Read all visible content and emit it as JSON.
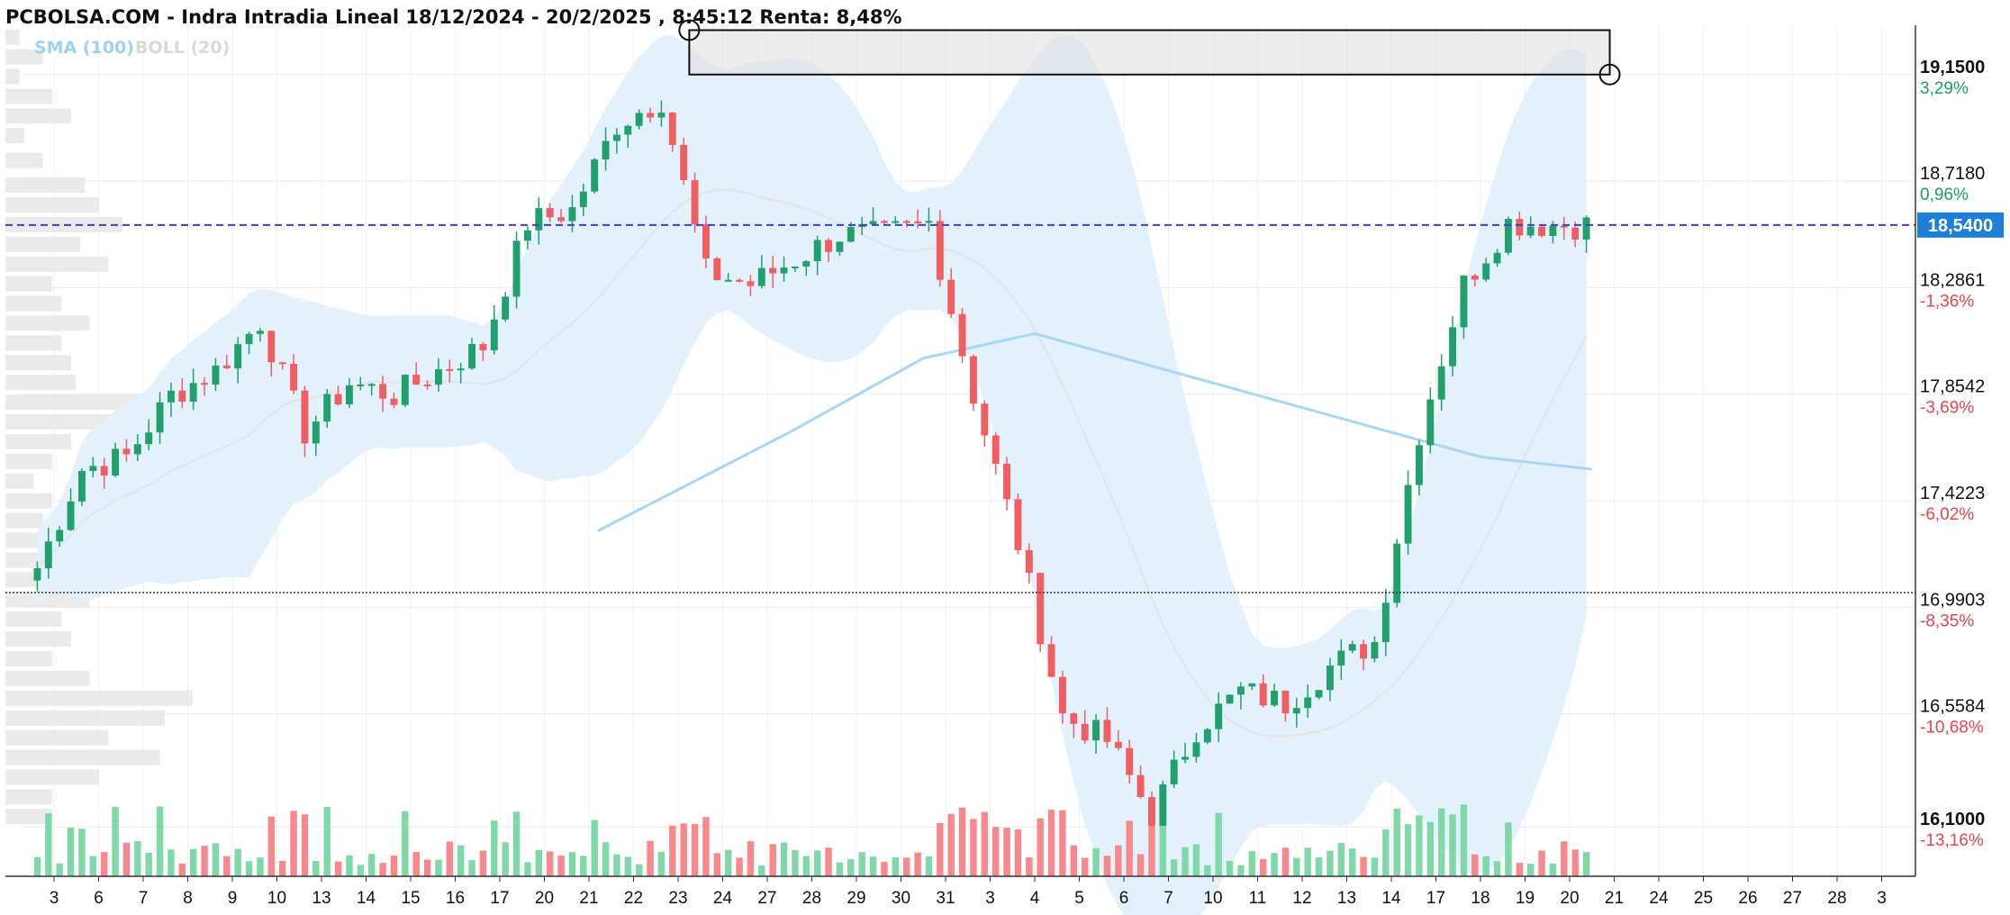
{
  "title": "PCBOLSA.COM - Indra Intradia Lineal 18/12/2024 - 20/2/2025 , 8:45:12 Renta: 8,48%",
  "legend": {
    "sma": "SMA (100)",
    "boll": "BOLL (20)"
  },
  "colors": {
    "up": "#22a06b",
    "down": "#f15e62",
    "vol_up": "#7fd8a8",
    "vol_down": "#f7888b",
    "band_fill": "#e2f1fc",
    "sma": "#a9d6f5",
    "boll_mid": "#e4e4e4",
    "last_price_line": "#3b3bd6",
    "price_tag": "#1e7fd6",
    "profile": "#e6e6e6"
  },
  "price_axis": [
    {
      "label": "19,1500",
      "pct": "3,29%",
      "sign": "pos",
      "bold": true
    },
    {
      "label": "18,7180",
      "pct": "0,96%",
      "sign": "pos",
      "bold": false
    },
    {
      "label": "18,2861",
      "pct": "-1,36%",
      "sign": "neg",
      "bold": false
    },
    {
      "label": "17,8542",
      "pct": "-3,69%",
      "sign": "neg",
      "bold": false
    },
    {
      "label": "17,4223",
      "pct": "-6,02%",
      "sign": "neg",
      "bold": false
    },
    {
      "label": "16,9903",
      "pct": "-8,35%",
      "sign": "neg",
      "bold": false
    },
    {
      "label": "16,5584",
      "pct": "-10,68%",
      "sign": "neg",
      "bold": false
    },
    {
      "label": "16,1000",
      "pct": "-13,16%",
      "sign": "neg",
      "bold": true
    }
  ],
  "last_price": "18,5400",
  "chart_data": {
    "type": "candlestick",
    "title": "PCBOLSA.COM - Indra Intradia Lineal 18/12/2024 - 20/2/2025 , 8:45:12 Renta: 8,48%",
    "y_range": [
      15.9,
      19.35
    ],
    "x_categories": [
      "3",
      "6",
      "7",
      "8",
      "9",
      "10",
      "13",
      "14",
      "15",
      "16",
      "17",
      "20",
      "21",
      "22",
      "23",
      "24",
      "27",
      "28",
      "29",
      "30",
      "31",
      "3",
      "4",
      "5",
      "6",
      "7",
      "10",
      "11",
      "12",
      "13",
      "14",
      "17",
      "18",
      "19",
      "20",
      "21",
      "24",
      "25",
      "26",
      "27",
      "28",
      "3"
    ],
    "trading_days": 35,
    "last_price": 18.54,
    "reference_price": 17.05,
    "rectangle": {
      "x_start": 14.25,
      "x_end": 34.9,
      "y_top": 19.33,
      "y_bottom": 19.15
    },
    "day_anchors": [
      [
        0,
        17.15
      ],
      [
        1,
        17.55
      ],
      [
        2,
        17.6
      ],
      [
        3,
        17.85
      ],
      [
        4,
        17.95
      ],
      [
        5,
        18.15
      ],
      [
        6,
        17.7
      ],
      [
        7,
        17.9
      ],
      [
        8,
        17.85
      ],
      [
        9,
        17.95
      ],
      [
        10,
        18.05
      ],
      [
        11,
        18.55
      ],
      [
        12,
        18.6
      ],
      [
        13,
        18.95
      ],
      [
        14,
        19.05
      ],
      [
        15,
        18.35
      ],
      [
        16,
        18.3
      ],
      [
        17,
        18.4
      ],
      [
        18,
        18.5
      ],
      [
        19,
        18.5
      ],
      [
        20,
        18.55
      ],
      [
        21,
        17.85
      ],
      [
        22,
        17.25
      ],
      [
        23,
        16.55
      ],
      [
        24,
        16.45
      ],
      [
        25,
        16.15
      ],
      [
        26,
        16.5
      ],
      [
        27,
        16.65
      ],
      [
        28,
        16.6
      ],
      [
        29,
        16.75
      ],
      [
        30,
        16.85
      ],
      [
        31,
        17.7
      ],
      [
        32,
        18.3
      ],
      [
        33,
        18.55
      ],
      [
        34,
        18.54
      ]
    ],
    "sma_100": [
      [
        12.2,
        17.3
      ],
      [
        16.5,
        17.7
      ],
      [
        19.5,
        18.0
      ],
      [
        22.0,
        18.1
      ],
      [
        25.0,
        17.95
      ],
      [
        28.0,
        17.8
      ],
      [
        32.0,
        17.6
      ],
      [
        34.5,
        17.55
      ]
    ],
    "volume_profile": [
      [
        19.3,
        0.03
      ],
      [
        19.22,
        0.08
      ],
      [
        19.14,
        0.03
      ],
      [
        19.06,
        0.1
      ],
      [
        18.98,
        0.14
      ],
      [
        18.9,
        0.04
      ],
      [
        18.8,
        0.08
      ],
      [
        18.7,
        0.17
      ],
      [
        18.62,
        0.2
      ],
      [
        18.54,
        0.25
      ],
      [
        18.46,
        0.16
      ],
      [
        18.38,
        0.22
      ],
      [
        18.3,
        0.1
      ],
      [
        18.22,
        0.12
      ],
      [
        18.14,
        0.18
      ],
      [
        18.06,
        0.12
      ],
      [
        17.98,
        0.14
      ],
      [
        17.9,
        0.15
      ],
      [
        17.82,
        0.36
      ],
      [
        17.74,
        0.25
      ],
      [
        17.66,
        0.14
      ],
      [
        17.58,
        0.1
      ],
      [
        17.5,
        0.06
      ],
      [
        17.42,
        0.1
      ],
      [
        17.34,
        0.08
      ],
      [
        17.26,
        0.14
      ],
      [
        17.18,
        0.12
      ],
      [
        17.1,
        0.16
      ],
      [
        17.02,
        0.18
      ],
      [
        16.94,
        0.12
      ],
      [
        16.86,
        0.14
      ],
      [
        16.78,
        0.1
      ],
      [
        16.7,
        0.18
      ],
      [
        16.62,
        0.4
      ],
      [
        16.54,
        0.34
      ],
      [
        16.46,
        0.22
      ],
      [
        16.38,
        0.33
      ],
      [
        16.3,
        0.2
      ],
      [
        16.22,
        0.1
      ],
      [
        16.14,
        0.1
      ]
    ]
  }
}
